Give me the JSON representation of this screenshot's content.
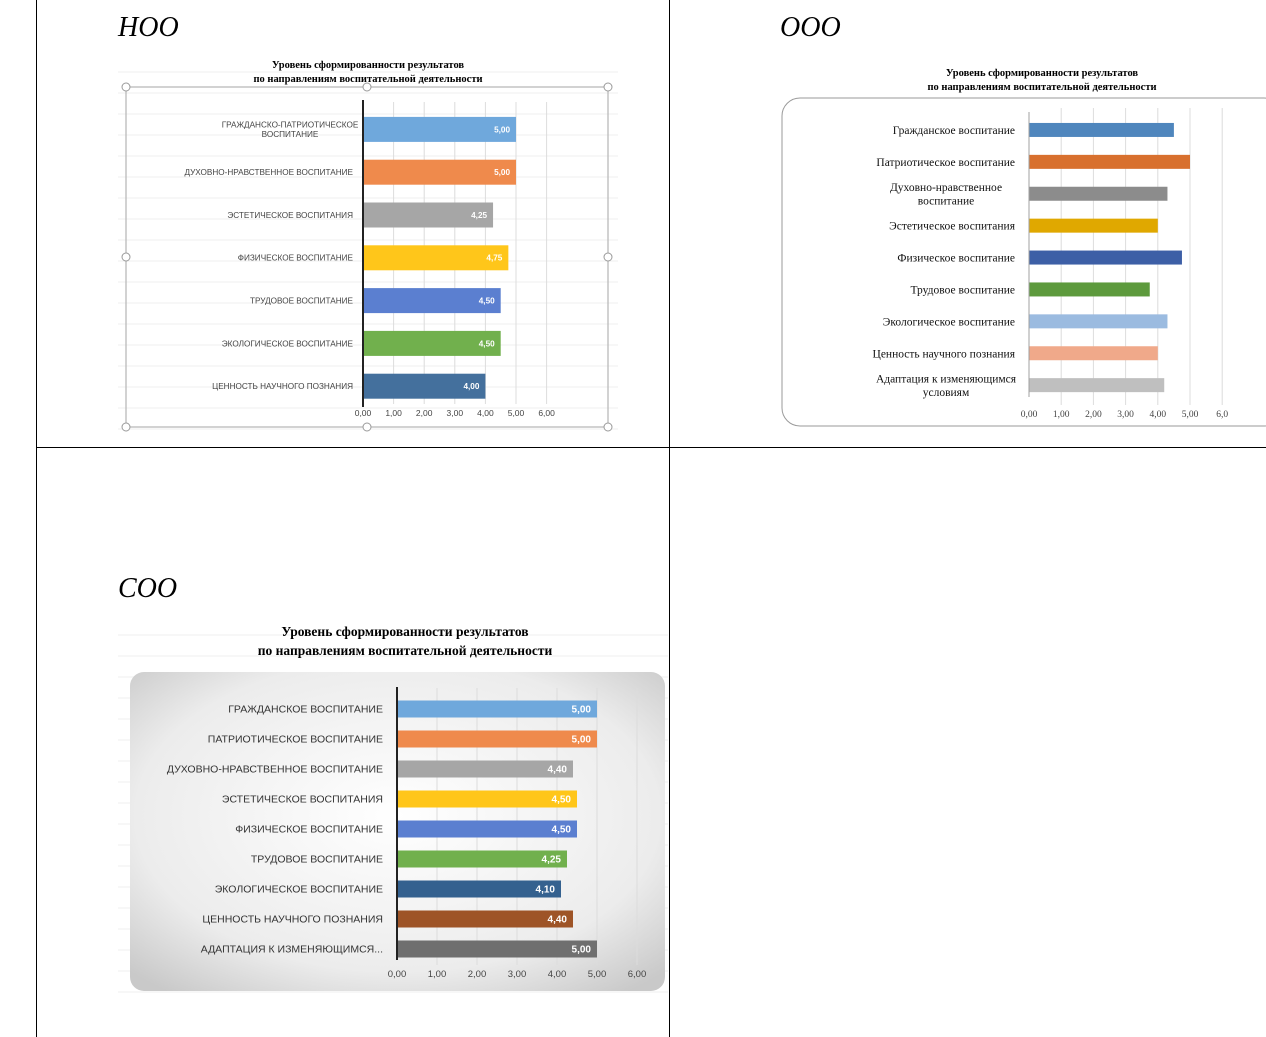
{
  "labels": {
    "noo": "НОО",
    "ooo": "ООО",
    "soo": "СОО"
  },
  "chart_data": [
    {
      "type": "bar",
      "title": "Уровень сформированности результатов по направлениям воспитательной деятельности",
      "title_lines": [
        "Уровень сформированности результатов",
        "по направлениям воспитательной деятельности"
      ],
      "categories": [
        [
          "ГРАЖДАНСКО-ПАТРИОТИЧЕСКОЕ",
          "ВОСПИТАНИЕ"
        ],
        [
          "ДУХОВНО-НРАВСТВЕННОЕ ВОСПИТАНИЕ"
        ],
        [
          "ЭСТЕТИЧЕСКОЕ ВОСПИТАНИЯ"
        ],
        [
          "ФИЗИЧЕСКОЕ ВОСПИТАНИЕ"
        ],
        [
          "ТРУДОВОЕ ВОСПИТАНИЕ"
        ],
        [
          "ЭКОЛОГИЧЕСКОЕ ВОСПИТАНИЕ"
        ],
        [
          "ЦЕННОСТЬ НАУЧНОГО ПОЗНАНИЯ"
        ]
      ],
      "values": [
        5.0,
        5.0,
        4.25,
        4.75,
        4.5,
        4.5,
        4.0
      ],
      "data_labels": [
        "5,00",
        "5,00",
        "4,25",
        "4,75",
        "4,50",
        "4,50",
        "4,00"
      ],
      "colors": [
        "#6fa8dc",
        "#ef8a4c",
        "#a6a6a6",
        "#ffc61a",
        "#5b7fd0",
        "#71b04d",
        "#44709d"
      ],
      "xlim": [
        0,
        6
      ],
      "ticks": [
        "0,00",
        "1,00",
        "2,00",
        "3,00",
        "4,00",
        "5,00",
        "6,00"
      ]
    },
    {
      "type": "bar",
      "title": "Уровень сформированности результатов по направлениям воспитательной деятельности",
      "title_lines": [
        "Уровень сформированности результатов",
        "по направлениям воспитательной деятельности"
      ],
      "categories": [
        [
          "Гражданское воспитание"
        ],
        [
          "Патриотическое воспитание"
        ],
        [
          "Духовно-нравственное",
          "воспитание"
        ],
        [
          "Эстетическое воспитания"
        ],
        [
          "Физическое воспитание"
        ],
        [
          "Трудовое воспитание"
        ],
        [
          "Экологическое воспитание"
        ],
        [
          "Ценность научного познания"
        ],
        [
          "Адаптация к изменяющимся",
          "условиям"
        ]
      ],
      "values": [
        4.5,
        5.0,
        4.3,
        4.0,
        4.75,
        3.75,
        4.3,
        4.0,
        4.2
      ],
      "colors": [
        "#4f86bd",
        "#d8702e",
        "#8c8c8c",
        "#e0a800",
        "#3d5fa6",
        "#5d9a3d",
        "#9bbbe0",
        "#f0a98a",
        "#bfbfbf"
      ],
      "xlim": [
        0,
        6
      ],
      "ticks": [
        "0,00",
        "1,00",
        "2,00",
        "3,00",
        "4,00",
        "5,00",
        "6,0"
      ]
    },
    {
      "type": "bar",
      "title": "Уровень сформированности результатов по направлениям воспитательной деятельности",
      "title_lines": [
        "Уровень сформированности результатов",
        "по направлениям воспитательной деятельности"
      ],
      "categories": [
        [
          "ГРАЖДАНСКОЕ ВОСПИТАНИЕ"
        ],
        [
          "ПАТРИОТИЧЕСКОЕ ВОСПИТАНИЕ"
        ],
        [
          "ДУХОВНО-НРАВСТВЕННОЕ ВОСПИТАНИЕ"
        ],
        [
          "ЭСТЕТИЧЕСКОЕ ВОСПИТАНИЯ"
        ],
        [
          "ФИЗИЧЕСКОЕ ВОСПИТАНИЕ"
        ],
        [
          "ТРУДОВОЕ ВОСПИТАНИЕ"
        ],
        [
          "ЭКОЛОГИЧЕСКОЕ ВОСПИТАНИЕ"
        ],
        [
          "ЦЕННОСТЬ НАУЧНОГО ПОЗНАНИЯ"
        ],
        [
          "АДАПТАЦИЯ К ИЗМЕНЯЮЩИМСЯ..."
        ]
      ],
      "values": [
        5.0,
        5.0,
        4.4,
        4.5,
        4.5,
        4.25,
        4.1,
        4.4,
        5.0
      ],
      "data_labels": [
        "5,00",
        "5,00",
        "4,40",
        "4,50",
        "4,50",
        "4,25",
        "4,10",
        "4,40",
        "5,00"
      ],
      "colors": [
        "#6fa8dc",
        "#ef8a4c",
        "#a6a6a6",
        "#ffc61a",
        "#5b7fd0",
        "#71b04d",
        "#34618f",
        "#9e5427",
        "#6f6f6f"
      ],
      "xlim": [
        0,
        6
      ],
      "ticks": [
        "0,00",
        "1,00",
        "2,00",
        "3,00",
        "4,00",
        "5,00",
        "6,00"
      ]
    }
  ]
}
